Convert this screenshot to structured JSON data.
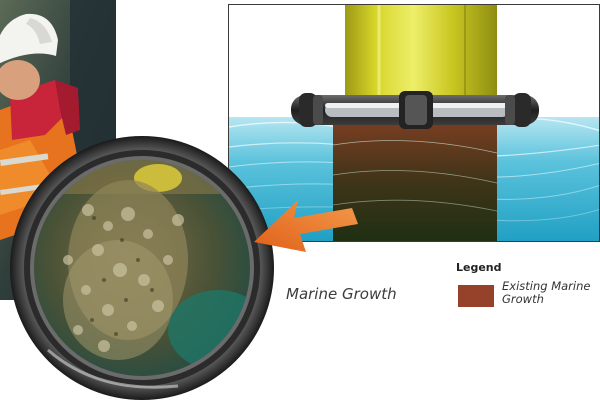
{
  "labels": {
    "marine_growth": "Marine Growth"
  },
  "legend": {
    "title": "Legend",
    "items": [
      {
        "label": "Existing Marine Growth",
        "color": "#96412a"
      }
    ]
  },
  "colors": {
    "pile": "#c9c822",
    "water": "#3fb3cf",
    "arrow": "#ee7325",
    "growth": "#96412a"
  }
}
